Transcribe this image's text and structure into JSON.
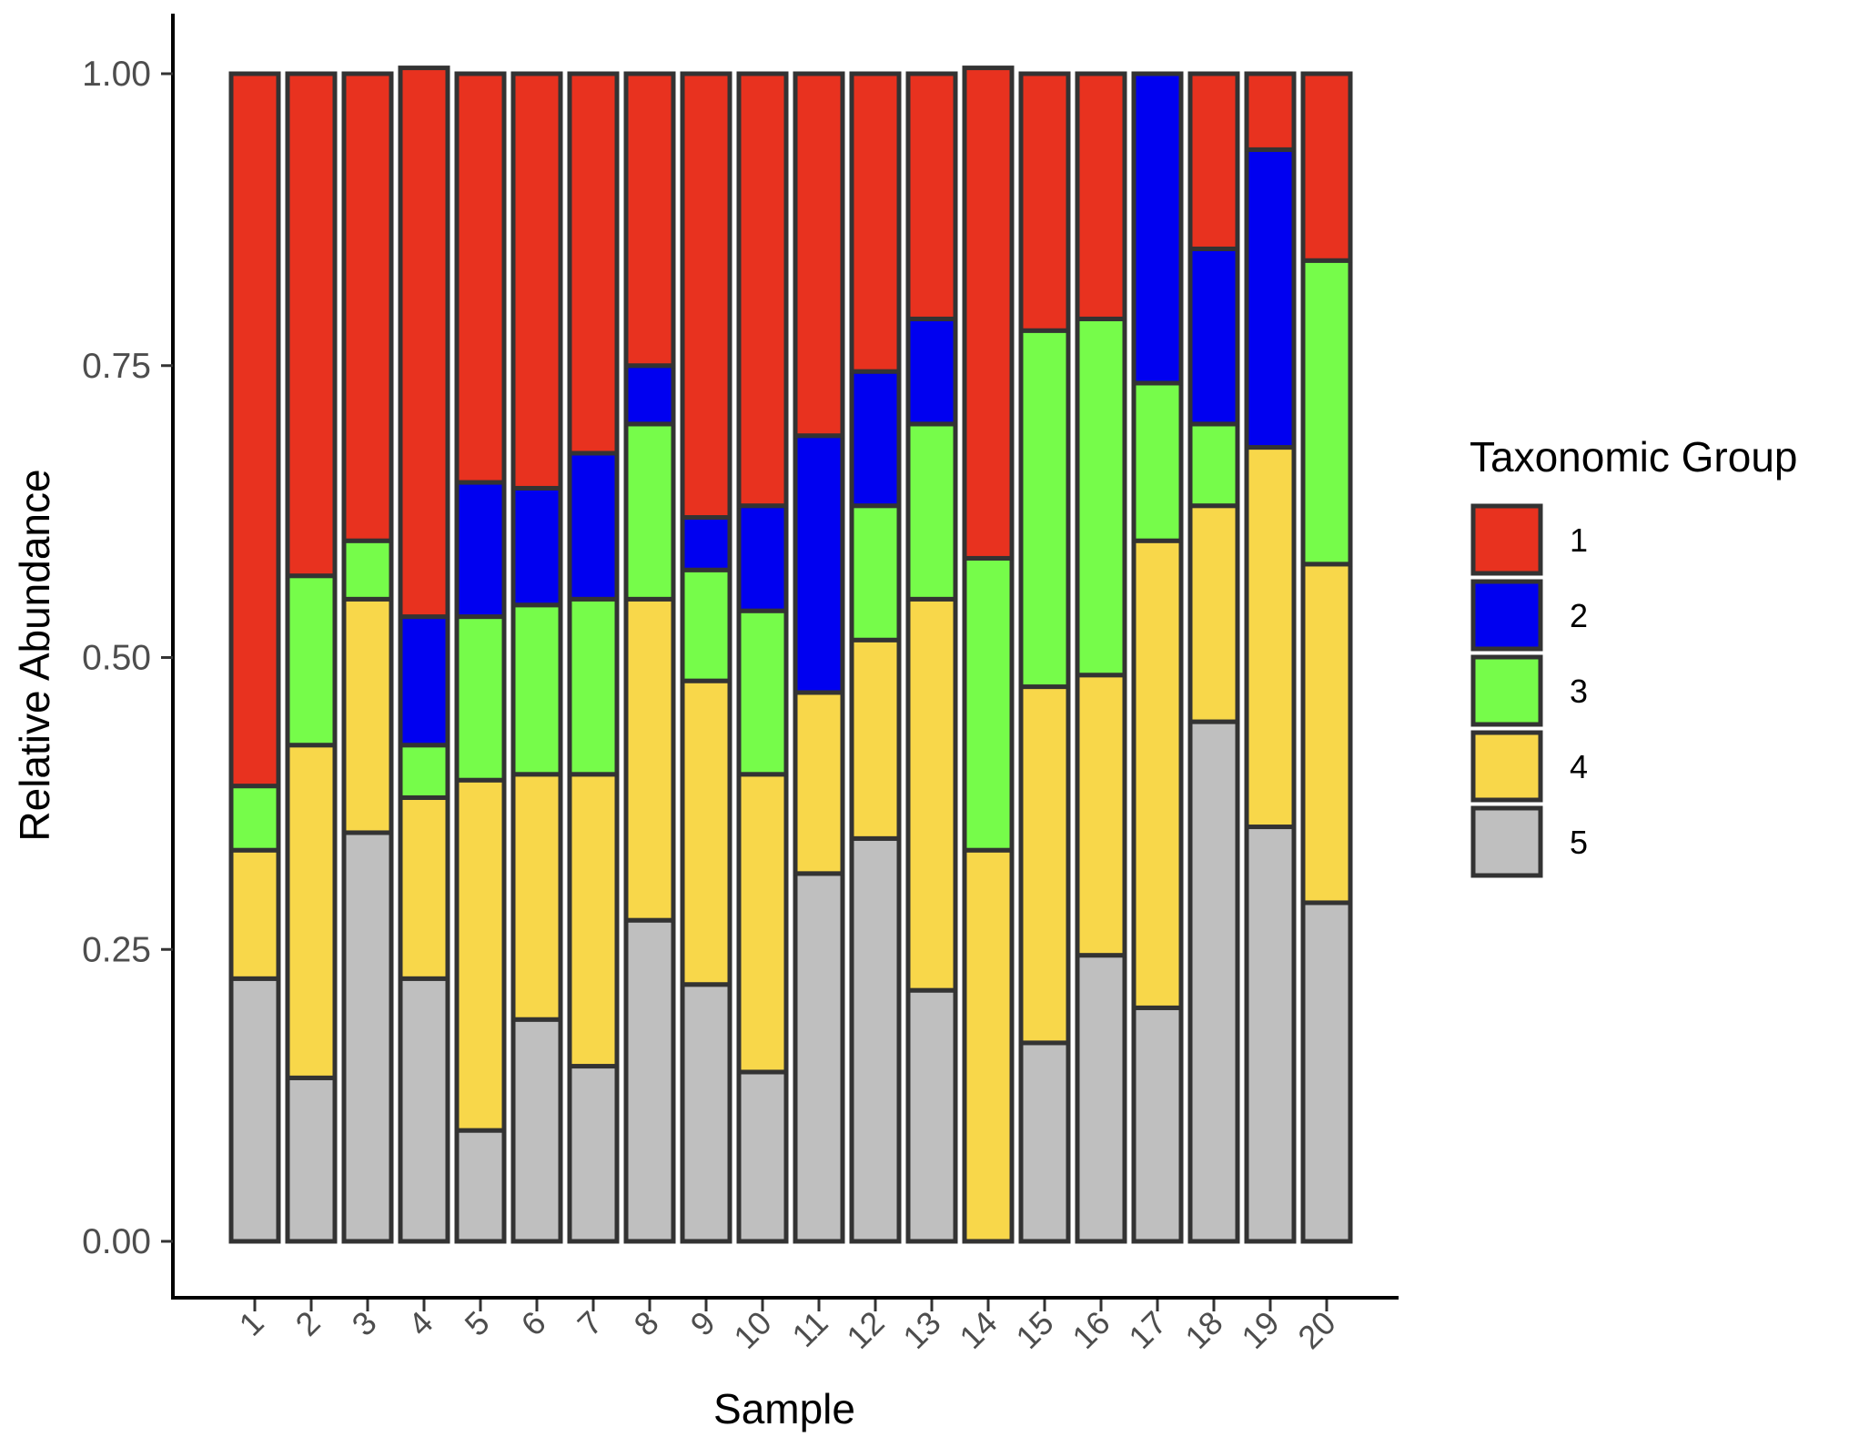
{
  "chart_data": {
    "type": "bar",
    "stacked": true,
    "categories": [
      "1",
      "2",
      "3",
      "4",
      "5",
      "6",
      "7",
      "8",
      "9",
      "10",
      "11",
      "12",
      "13",
      "14",
      "15",
      "16",
      "17",
      "18",
      "19",
      "20"
    ],
    "xlabel": "Sample",
    "ylabel": "Relative Abundance",
    "ylim": [
      0,
      1
    ],
    "yticks": [
      "0.00",
      "0.25",
      "0.50",
      "0.75",
      "1.00"
    ],
    "ytick_values": [
      0,
      0.25,
      0.5,
      0.75,
      1.0
    ],
    "grid": false,
    "legend": {
      "title": "Taxonomic Group",
      "placement": "right"
    },
    "series": [
      {
        "name": "1",
        "color": "#e8321f",
        "values": [
          0.61,
          0.43,
          0.4,
          0.47,
          0.35,
          0.355,
          0.325,
          0.25,
          0.38,
          0.37,
          0.31,
          0.255,
          0.21,
          0.42,
          0.22,
          0.21,
          0.0,
          0.15,
          0.065,
          0.16
        ]
      },
      {
        "name": "2",
        "color": "#0000f0",
        "values": [
          0.0,
          0.0,
          0.0,
          0.11,
          0.115,
          0.1,
          0.125,
          0.05,
          0.045,
          0.09,
          0.22,
          0.115,
          0.09,
          0.0,
          0.0,
          0.0,
          0.265,
          0.15,
          0.255,
          0.0
        ]
      },
      {
        "name": "3",
        "color": "#76fc4a",
        "values": [
          0.055,
          0.145,
          0.05,
          0.045,
          0.14,
          0.145,
          0.15,
          0.15,
          0.095,
          0.14,
          0.0,
          0.115,
          0.15,
          0.25,
          0.305,
          0.305,
          0.135,
          0.07,
          0.0,
          0.26
        ]
      },
      {
        "name": "4",
        "color": "#f8d74a",
        "values": [
          0.11,
          0.285,
          0.2,
          0.155,
          0.3,
          0.21,
          0.25,
          0.275,
          0.26,
          0.255,
          0.155,
          0.17,
          0.335,
          0.335,
          0.305,
          0.24,
          0.4,
          0.185,
          0.325,
          0.29
        ]
      },
      {
        "name": "5",
        "color": "#bfbfbf",
        "values": [
          0.225,
          0.14,
          0.35,
          0.225,
          0.095,
          0.19,
          0.15,
          0.275,
          0.22,
          0.145,
          0.315,
          0.345,
          0.215,
          0.0,
          0.17,
          0.245,
          0.2,
          0.445,
          0.355,
          0.29
        ]
      }
    ]
  }
}
